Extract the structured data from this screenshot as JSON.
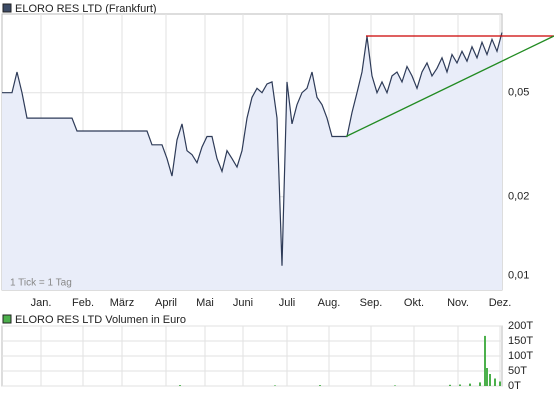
{
  "chart_data": [
    {
      "type": "line",
      "title": "ELORO RES LTD (Frankfurt)",
      "note": "1 Tick = 1 Tag",
      "log_scale": true,
      "grid": true,
      "x": [
        0,
        1,
        2,
        3,
        4,
        5,
        6,
        7,
        8,
        9,
        10,
        11,
        12,
        13,
        14,
        15,
        16,
        17,
        18,
        19,
        20,
        21,
        22,
        23,
        24,
        25,
        26,
        27,
        28,
        29,
        30,
        31,
        32,
        33,
        34,
        35,
        36,
        37,
        38,
        39,
        40,
        41,
        42,
        43,
        44,
        45,
        46,
        47,
        48,
        49,
        50,
        51,
        52,
        53,
        54,
        55,
        56,
        57,
        58,
        59,
        60,
        61,
        62,
        63,
        64,
        65,
        66,
        67,
        68,
        69,
        70,
        71,
        72,
        73,
        74,
        75,
        76,
        77,
        78,
        79,
        80,
        81,
        82,
        83,
        84,
        85,
        86,
        87,
        88,
        89,
        90,
        91,
        92,
        93,
        94,
        95,
        96,
        97,
        98,
        99,
        100
      ],
      "series": [
        {
          "name": "ELORO RES LTD (Frankfurt)",
          "color": "#2e3b58",
          "values": [
            0.05,
            0.05,
            0.05,
            0.06,
            0.05,
            0.04,
            0.04,
            0.04,
            0.04,
            0.04,
            0.04,
            0.04,
            0.04,
            0.04,
            0.04,
            0.0357,
            0.0357,
            0.0357,
            0.0357,
            0.0357,
            0.0357,
            0.0357,
            0.0357,
            0.0357,
            0.0357,
            0.0357,
            0.0357,
            0.0357,
            0.0357,
            0.0357,
            0.0316,
            0.0316,
            0.0316,
            0.028,
            0.024,
            0.033,
            0.038,
            0.03,
            0.029,
            0.027,
            0.031,
            0.034,
            0.034,
            0.028,
            0.025,
            0.03,
            0.028,
            0.026,
            0.03,
            0.04,
            0.048,
            0.052,
            0.05,
            0.054,
            0.055,
            0.04,
            0.0109,
            0.055,
            0.038,
            0.045,
            0.05,
            0.052,
            0.06,
            0.048,
            0.045,
            0.04,
            0.034,
            0.034,
            0.034,
            0.034,
            0.042,
            0.05,
            0.06,
            0.082,
            0.058,
            0.05,
            0.055,
            0.05,
            0.058,
            0.06,
            0.055,
            0.063,
            0.058,
            0.052,
            0.06,
            0.065,
            0.058,
            0.062,
            0.068,
            0.06,
            0.07,
            0.065,
            0.072,
            0.066,
            0.075,
            0.068,
            0.078,
            0.07,
            0.08,
            0.072,
            0.085
          ]
        }
      ],
      "trendlines": [
        {
          "color": "#cc0000",
          "x": [
            72.8,
            110.4
          ],
          "y": [
            0.0824,
            0.0824
          ]
        },
        {
          "color": "#228b22",
          "x": [
            68.8,
            110.4
          ],
          "y": [
            0.034,
            0.0824
          ]
        }
      ],
      "xlim": [
        0,
        100
      ],
      "xticks": [
        {
          "value": 7.8,
          "label": "Jan."
        },
        {
          "value": 16.2,
          "label": "Feb."
        },
        {
          "value": 24,
          "label": "März"
        },
        {
          "value": 32.8,
          "label": "April"
        },
        {
          "value": 40.6,
          "label": "Mai"
        },
        {
          "value": 48.2,
          "label": "Juni"
        },
        {
          "value": 57,
          "label": "Juli"
        },
        {
          "value": 65.4,
          "label": "Aug."
        },
        {
          "value": 73.8,
          "label": "Sep."
        },
        {
          "value": 82.4,
          "label": "Okt."
        },
        {
          "value": 91.2,
          "label": "Nov."
        },
        {
          "value": 99.6,
          "label": "Dez."
        }
      ],
      "ylim": [
        0.0088,
        0.1
      ],
      "yticks": [
        {
          "value": 0.01,
          "label": "0,01"
        },
        {
          "value": 0.02,
          "label": "0,02"
        },
        {
          "value": 0.05,
          "label": "0,05"
        }
      ]
    },
    {
      "type": "bar",
      "title": "ELORO RES LTD Volumen in Euro",
      "color": "#4cb04c",
      "grid": true,
      "x": [
        35.6,
        54.6,
        63.6,
        78.6,
        89.6,
        91.6,
        93.6,
        95.6,
        96.6,
        97,
        97.6,
        98.6,
        99.6
      ],
      "values": [
        3000,
        2000,
        3000,
        2000,
        4000,
        5000,
        8000,
        12000,
        167000,
        60000,
        40000,
        25000,
        15000
      ],
      "xlim": [
        0,
        100
      ],
      "ylim": [
        0,
        200000
      ],
      "yticks": [
        {
          "value": 0,
          "label": "0T"
        },
        {
          "value": 50000,
          "label": "50T"
        },
        {
          "value": 100000,
          "label": "100T"
        },
        {
          "value": 150000,
          "label": "150T"
        },
        {
          "value": 200000,
          "label": "200T"
        }
      ]
    }
  ]
}
